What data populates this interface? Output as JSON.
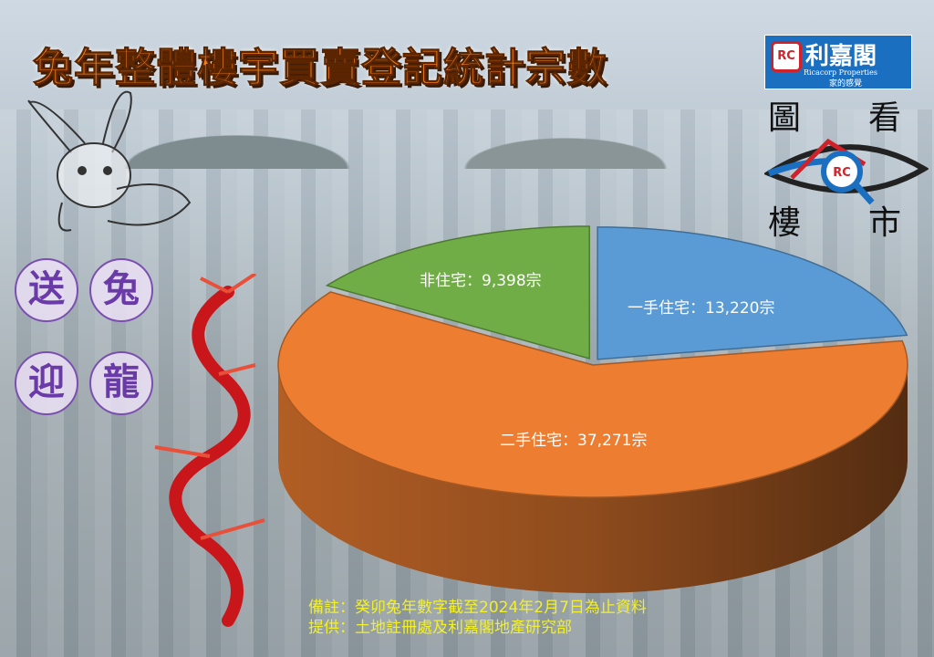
{
  "title": "兔年整體樓宇買賣登記統計宗數",
  "logo": {
    "name_cn": "利嘉閣",
    "name_en": "Ricacorp Properties",
    "slogan": "家的感覺",
    "mark": "RC"
  },
  "slogan_side": [
    "圖",
    "看",
    "樓",
    "市"
  ],
  "badges": [
    "送",
    "兔",
    "迎",
    "龍"
  ],
  "colors": {
    "first_hand": "#5b9bd5",
    "second_hand": "#ed7d31",
    "non_residential": "#70ad47",
    "title": "#f07d1a",
    "note": "#f3f02a"
  },
  "chart_data": {
    "type": "pie",
    "style": "3d-exploded",
    "unit": "宗",
    "slices": [
      {
        "name": "一手住宅",
        "value": 13220,
        "label": "一手住宅：13,220宗",
        "color": "#5b9bd5"
      },
      {
        "name": "二手住宅",
        "value": 37271,
        "label": "二手住宅：37,271宗",
        "color": "#ed7d31"
      },
      {
        "name": "非住宅",
        "value": 9398,
        "label": "非住宅：9,398宗",
        "color": "#70ad47"
      }
    ]
  },
  "notes": [
    "備註：癸卯兔年數字截至2024年2月7日為止資料",
    "提供：土地註冊處及利嘉閣地產研究部"
  ]
}
